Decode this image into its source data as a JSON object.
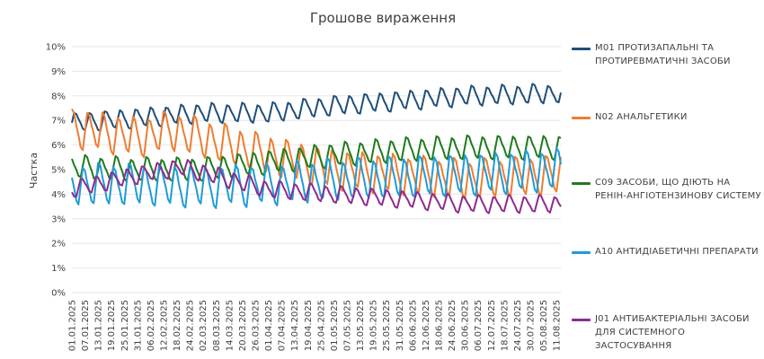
{
  "chart_data": {
    "type": "line",
    "title": "Грошове вираження",
    "xlabel": "",
    "ylabel": "Частка",
    "ylim": [
      0,
      10
    ],
    "y_unit": "%",
    "yticks": [
      "0%",
      "1%",
      "2%",
      "3%",
      "4%",
      "5%",
      "6%",
      "7%",
      "8%",
      "9%",
      "10%"
    ],
    "grid": true,
    "legend_position": "right",
    "x_start": "2025-01-01",
    "x_end": "2025-08-13",
    "xtick_labels": [
      "01.01.2025",
      "07.01.2025",
      "13.01.2025",
      "19.01.2025",
      "25.01.2025",
      "31.01.2025",
      "06.02.2025",
      "12.02.2025",
      "18.02.2025",
      "24.02.2025",
      "02.03.2025",
      "08.03.2025",
      "14.03.2025",
      "20.03.2025",
      "26.03.2025",
      "01.04.2025",
      "07.04.2025",
      "13.04.2025",
      "19.04.2025",
      "25.04.2025",
      "01.05.2025",
      "07.05.2025",
      "13.05.2025",
      "19.05.2025",
      "25.05.2025",
      "31.05.2025",
      "06.06.2025",
      "12.06.2025",
      "18.06.2025",
      "24.06.2025",
      "30.06.2025",
      "06.07.2025",
      "12.07.2025",
      "18.07.2025",
      "24.07.2025",
      "30.07.2025",
      "05.08.2025",
      "11.08.2025"
    ],
    "series": [
      {
        "name": "M01 ПРОТИЗАПАЛЬНІ ТА ПРОТИРЕВМАТИЧНІ ЗАСОБИ",
        "color": "#1f4e79",
        "base_points": [
          [
            "2025-01-01",
            6.9
          ],
          [
            "2025-02-01",
            7.1
          ],
          [
            "2025-03-01",
            7.3
          ],
          [
            "2025-04-01",
            7.3
          ],
          [
            "2025-04-20",
            7.5
          ],
          [
            "2025-05-01",
            7.6
          ],
          [
            "2025-06-01",
            7.8
          ],
          [
            "2025-07-01",
            8.0
          ],
          [
            "2025-08-13",
            8.1
          ]
        ],
        "weekly_amplitude": 0.45
      },
      {
        "name": "N02 АНАЛЬГЕТИКИ",
        "color": "#ed7d31",
        "base_points": [
          [
            "2025-01-01",
            6.7
          ],
          [
            "2025-02-01",
            6.3
          ],
          [
            "2025-02-15",
            6.6
          ],
          [
            "2025-03-01",
            6.3
          ],
          [
            "2025-04-01",
            5.6
          ],
          [
            "2025-05-01",
            5.0
          ],
          [
            "2025-06-01",
            4.8
          ],
          [
            "2025-07-01",
            4.6
          ],
          [
            "2025-08-13",
            4.8
          ]
        ],
        "weekly_amplitude": 0.9
      },
      {
        "name": "C09 ЗАСОБИ, ЩО ДІЮТЬ НА РЕНІН-АНГІОТЕНЗИНОВУ СИСТЕМУ",
        "color": "#1e7b1e",
        "base_points": [
          [
            "2025-01-01",
            5.1
          ],
          [
            "2025-02-01",
            5.0
          ],
          [
            "2025-03-01",
            5.0
          ],
          [
            "2025-04-01",
            5.3
          ],
          [
            "2025-05-01",
            5.6
          ],
          [
            "2025-06-01",
            5.8
          ],
          [
            "2025-07-01",
            5.9
          ],
          [
            "2025-08-13",
            5.9
          ]
        ],
        "weekly_amplitude": 0.55
      },
      {
        "name": "A10 АНТИДІАБЕТИЧНІ ПРЕПАРАТИ",
        "color": "#1f9bd7",
        "base_points": [
          [
            "2025-01-01",
            4.4
          ],
          [
            "2025-02-01",
            4.4
          ],
          [
            "2025-03-01",
            4.3
          ],
          [
            "2025-04-01",
            4.4
          ],
          [
            "2025-05-01",
            4.6
          ],
          [
            "2025-06-01",
            4.7
          ],
          [
            "2025-07-01",
            4.8
          ],
          [
            "2025-08-13",
            5.0
          ]
        ],
        "weekly_amplitude": 0.95
      },
      {
        "name": "J01 АНТИБАКТЕРІАЛЬНІ ЗАСОБИ ДЛЯ СИСТЕМНОГО ЗАСТОСУВАННЯ",
        "color": "#8e2b8e",
        "base_points": [
          [
            "2025-01-01",
            4.2
          ],
          [
            "2025-02-01",
            4.8
          ],
          [
            "2025-02-20",
            5.1
          ],
          [
            "2025-03-01",
            4.9
          ],
          [
            "2025-04-01",
            4.2
          ],
          [
            "2025-05-01",
            4.0
          ],
          [
            "2025-06-01",
            3.8
          ],
          [
            "2025-07-01",
            3.6
          ],
          [
            "2025-08-13",
            3.6
          ]
        ],
        "weekly_amplitude": 0.4
      }
    ]
  },
  "legend": {
    "items": [
      {
        "label": "M01 ПРОТИЗАПАЛЬНІ ТА ПРОТИРЕВМАТИЧНІ ЗАСОБИ",
        "color": "#1f4e79"
      },
      {
        "label": "N02 АНАЛЬГЕТИКИ",
        "color": "#ed7d31"
      },
      {
        "label": "C09 ЗАСОБИ, ЩО ДІЮТЬ НА РЕНІН-АНГІОТЕНЗИНОВУ СИСТЕМУ",
        "color": "#1e7b1e"
      },
      {
        "label": "A10 АНТИДІАБЕТИЧНІ ПРЕПАРАТИ",
        "color": "#1f9bd7"
      },
      {
        "label": "J01 АНТИБАКТЕРІАЛЬНІ ЗАСОБИ ДЛЯ СИСТЕМНОГО ЗАСТОСУВАННЯ",
        "color": "#8e2b8e"
      }
    ]
  }
}
